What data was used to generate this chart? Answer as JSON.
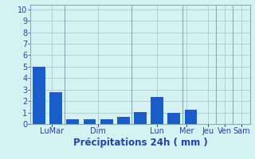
{
  "bars": [
    {
      "x": 0,
      "height": 5.0
    },
    {
      "x": 1,
      "height": 2.75
    },
    {
      "x": 2,
      "height": 0.4
    },
    {
      "x": 3,
      "height": 0.4
    },
    {
      "x": 4,
      "height": 0.45
    },
    {
      "x": 5,
      "height": 0.6
    },
    {
      "x": 6,
      "height": 1.05
    },
    {
      "x": 7,
      "height": 2.35
    },
    {
      "x": 8,
      "height": 1.0
    },
    {
      "x": 9,
      "height": 1.25
    },
    {
      "x": 10,
      "height": 0.0
    },
    {
      "x": 11,
      "height": 0.0
    },
    {
      "x": 12,
      "height": 0.0
    }
  ],
  "day_separators": [
    1.5,
    5.5,
    8.5,
    10.5,
    11.5
  ],
  "xtick_positions": [
    0.75,
    3.5,
    7.0,
    8.75,
    10.0,
    11.0,
    12.0
  ],
  "xtick_labels": [
    "LuMar",
    "Dim",
    "Lun",
    "Mer",
    "Jeu",
    "Ven",
    "Sam"
  ],
  "bar_color": "#1a5dc8",
  "background_color": "#d5f2f2",
  "grid_color": "#aacccc",
  "spine_color": "#8aaabb",
  "ylabel_ticks": [
    0,
    1,
    2,
    3,
    4,
    5,
    6,
    7,
    8,
    9,
    10
  ],
  "ylim": [
    0,
    10.4
  ],
  "xlim": [
    -0.5,
    12.5
  ],
  "xlabel": "Précipitations 24h ( mm )",
  "xlabel_color": "#2244aa",
  "xlabel_fontsize": 8.5,
  "tick_color": "#2244aa",
  "tick_fontsize": 7.0,
  "ytick_fontsize": 7.0
}
